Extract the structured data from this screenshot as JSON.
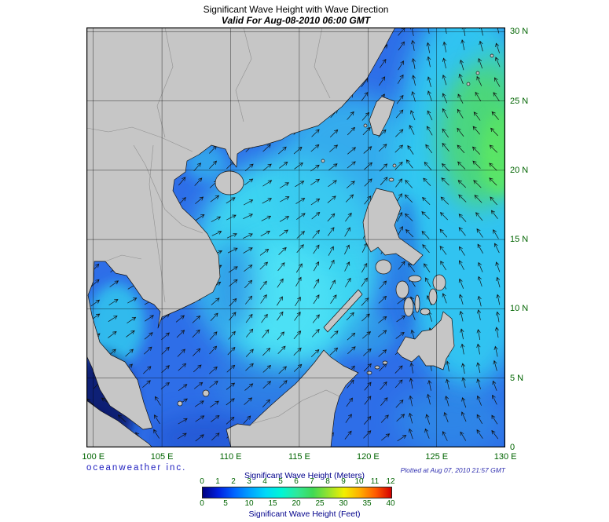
{
  "title": "Significant Wave Height with Wave Direction",
  "subtitle": "Valid For Aug-08-2010 06:00 GMT",
  "branding": "oceanweather inc.",
  "plotted_at": "Plotted at Aug 07, 2010 21:57 GMT",
  "axes": {
    "lat_ticks": [
      {
        "label": "30 N",
        "lat": 30
      },
      {
        "label": "25 N",
        "lat": 25
      },
      {
        "label": "20 N",
        "lat": 20
      },
      {
        "label": "15 N",
        "lat": 15
      },
      {
        "label": "10 N",
        "lat": 10
      },
      {
        "label": "5 N",
        "lat": 5
      },
      {
        "label": "0",
        "lat": 0
      }
    ],
    "lon_ticks": [
      {
        "label": "100 E",
        "lon": 100
      },
      {
        "label": "105 E",
        "lon": 105
      },
      {
        "label": "110 E",
        "lon": 110
      },
      {
        "label": "115 E",
        "lon": 115
      },
      {
        "label": "120 E",
        "lon": 120
      },
      {
        "label": "125 E",
        "lon": 125
      },
      {
        "label": "130 E",
        "lon": 130
      }
    ]
  },
  "legend": {
    "title_meters": "Significant Wave Height (Meters)",
    "title_feet": "Significant Wave Height (Feet)",
    "meters_ticks": [
      "0",
      "1",
      "2",
      "3",
      "4",
      "5",
      "6",
      "7",
      "8",
      "9",
      "10",
      "11",
      "12"
    ],
    "feet_ticks": [
      "0",
      "5",
      "10",
      "15",
      "20",
      "25",
      "30",
      "35",
      "40"
    ],
    "gradient": [
      {
        "p": 0,
        "c": "#000082"
      },
      {
        "p": 0.0833,
        "c": "#0020e0"
      },
      {
        "p": 0.1667,
        "c": "#0064ff"
      },
      {
        "p": 0.25,
        "c": "#00a2ff"
      },
      {
        "p": 0.3333,
        "c": "#00d8f8"
      },
      {
        "p": 0.4167,
        "c": "#00f5d5"
      },
      {
        "p": 0.5,
        "c": "#30e89a"
      },
      {
        "p": 0.5833,
        "c": "#3fd955"
      },
      {
        "p": 0.6667,
        "c": "#97e32e"
      },
      {
        "p": 0.75,
        "c": "#f2ef00"
      },
      {
        "p": 0.8333,
        "c": "#ffae00"
      },
      {
        "p": 0.9167,
        "c": "#ff5a00"
      },
      {
        "p": 1,
        "c": "#d40000"
      }
    ]
  },
  "colors": {
    "land": "#c6c6c6",
    "ocean": "#2e6ee8",
    "axis_text": "#006400",
    "legend_title": "#00008b",
    "brand_text": "#2020c0",
    "plotted_text": "#3030b0",
    "title_text": "#000000",
    "arrow": "#101010"
  }
}
